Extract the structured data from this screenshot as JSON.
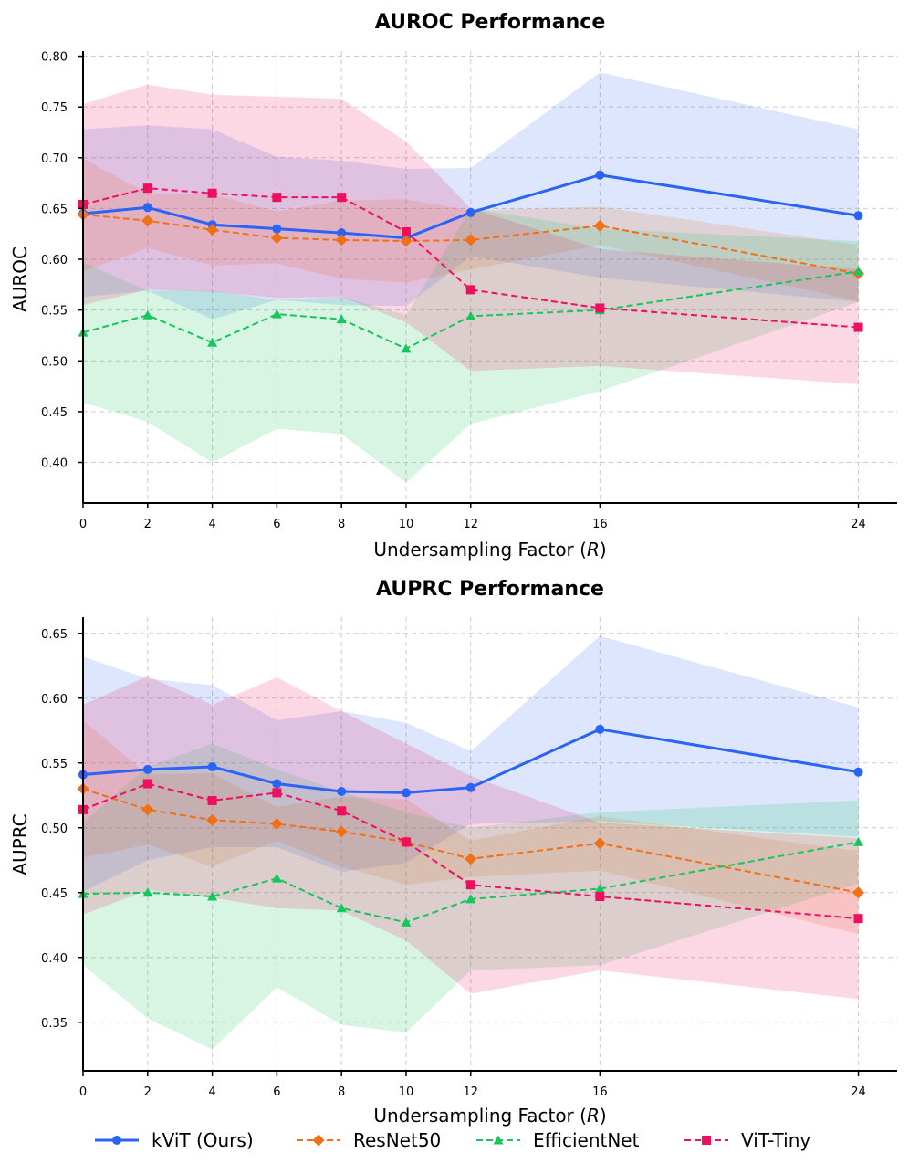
{
  "colors": {
    "kvit": "#2b63f5",
    "resnet": "#f07015",
    "efficientnet": "#17c65c",
    "vittiny": "#ee105f",
    "grid": "#cccccc",
    "axis": "#000000"
  },
  "legend": [
    {
      "name": "kViT (Ours)",
      "marker": "circle",
      "dashed": false,
      "colorKey": "kvit"
    },
    {
      "name": "ResNet50",
      "marker": "diamond",
      "dashed": true,
      "colorKey": "resnet"
    },
    {
      "name": "EfficientNet",
      "marker": "triangle",
      "dashed": true,
      "colorKey": "efficientnet"
    },
    {
      "name": "ViT-Tiny",
      "marker": "square",
      "dashed": true,
      "colorKey": "vittiny"
    }
  ],
  "chart_data": [
    {
      "type": "line",
      "title": "AUROC Performance",
      "xlabel_prefix": "Undersampling Factor (",
      "xlabel_var": "R",
      "xlabel_suffix": ")",
      "ylabel": "AUROC",
      "x": [
        0,
        2,
        4,
        6,
        8,
        10,
        12,
        16,
        24
      ],
      "xticks": [
        "0",
        "2",
        "4",
        "6",
        "8",
        "10",
        "12",
        "16",
        "24"
      ],
      "ylim": [
        0.36,
        0.805
      ],
      "yticks": [
        "0.40",
        "0.45",
        "0.50",
        "0.55",
        "0.60",
        "0.65",
        "0.70",
        "0.75",
        "0.80"
      ],
      "grid": true,
      "series": [
        {
          "name": "kViT (Ours)",
          "colorKey": "kvit",
          "marker": "circle",
          "dashed": false,
          "values": [
            0.645,
            0.651,
            0.634,
            0.63,
            0.626,
            0.621,
            0.646,
            0.683,
            0.643
          ],
          "lower": [
            0.563,
            0.569,
            0.541,
            0.56,
            0.555,
            0.554,
            0.603,
            0.582,
            0.558
          ],
          "upper": [
            0.728,
            0.732,
            0.728,
            0.701,
            0.697,
            0.689,
            0.69,
            0.784,
            0.728
          ]
        },
        {
          "name": "ResNet50",
          "colorKey": "resnet",
          "marker": "diamond",
          "dashed": true,
          "values": [
            0.644,
            0.638,
            0.629,
            0.621,
            0.619,
            0.618,
            0.619,
            0.633,
            0.586
          ],
          "lower": [
            0.588,
            0.611,
            0.594,
            0.596,
            0.581,
            0.577,
            0.59,
            0.614,
            0.559
          ],
          "upper": [
            0.699,
            0.665,
            0.664,
            0.647,
            0.658,
            0.659,
            0.648,
            0.652,
            0.614
          ]
        },
        {
          "name": "EfficientNet",
          "colorKey": "efficientnet",
          "marker": "triangle",
          "dashed": true,
          "values": [
            0.528,
            0.545,
            0.518,
            0.546,
            0.541,
            0.512,
            0.544,
            0.55,
            0.588
          ],
          "lower": [
            0.459,
            0.44,
            0.4,
            0.433,
            0.428,
            0.38,
            0.438,
            0.47,
            0.558
          ],
          "upper": [
            0.597,
            0.569,
            0.569,
            0.56,
            0.563,
            0.545,
            0.65,
            0.63,
            0.618
          ]
        },
        {
          "name": "ViT-Tiny",
          "colorKey": "vittiny",
          "marker": "square",
          "dashed": true,
          "values": [
            0.654,
            0.67,
            0.665,
            0.661,
            0.661,
            0.627,
            0.57,
            0.552,
            0.533
          ],
          "lower": [
            0.555,
            0.57,
            0.568,
            0.562,
            0.563,
            0.538,
            0.49,
            0.495,
            0.477
          ],
          "upper": [
            0.753,
            0.772,
            0.762,
            0.76,
            0.758,
            0.716,
            0.65,
            0.61,
            0.59
          ]
        }
      ]
    },
    {
      "type": "line",
      "title": "AUPRC Performance",
      "xlabel_prefix": "Undersampling Factor (",
      "xlabel_var": "R",
      "xlabel_suffix": ")",
      "ylabel": "AUPRC",
      "x": [
        0,
        2,
        4,
        6,
        8,
        10,
        12,
        16,
        24
      ],
      "xticks": [
        "0",
        "2",
        "4",
        "6",
        "8",
        "10",
        "12",
        "16",
        "24"
      ],
      "ylim": [
        0.3125,
        0.6625
      ],
      "yticks": [
        "0.35",
        "0.40",
        "0.45",
        "0.50",
        "0.55",
        "0.60",
        "0.65"
      ],
      "grid": true,
      "series": [
        {
          "name": "kViT (Ours)",
          "colorKey": "kvit",
          "marker": "circle",
          "dashed": false,
          "values": [
            0.541,
            0.545,
            0.547,
            0.534,
            0.528,
            0.527,
            0.531,
            0.576,
            0.543
          ],
          "lower": [
            0.451,
            0.475,
            0.485,
            0.485,
            0.466,
            0.473,
            0.503,
            0.505,
            0.493
          ],
          "upper": [
            0.632,
            0.615,
            0.61,
            0.583,
            0.59,
            0.581,
            0.559,
            0.648,
            0.593
          ]
        },
        {
          "name": "ResNet50",
          "colorKey": "resnet",
          "marker": "diamond",
          "dashed": true,
          "values": [
            0.53,
            0.514,
            0.506,
            0.503,
            0.497,
            0.489,
            0.476,
            0.488,
            0.45
          ],
          "lower": [
            0.477,
            0.487,
            0.47,
            0.49,
            0.47,
            0.456,
            0.462,
            0.467,
            0.418
          ],
          "upper": [
            0.583,
            0.541,
            0.542,
            0.516,
            0.524,
            0.522,
            0.49,
            0.509,
            0.482
          ]
        },
        {
          "name": "EfficientNet",
          "colorKey": "efficientnet",
          "marker": "triangle",
          "dashed": true,
          "values": [
            0.449,
            0.45,
            0.447,
            0.461,
            0.438,
            0.427,
            0.445,
            0.453,
            0.489
          ],
          "lower": [
            0.394,
            0.353,
            0.329,
            0.377,
            0.348,
            0.342,
            0.39,
            0.394,
            0.457
          ],
          "upper": [
            0.504,
            0.547,
            0.565,
            0.545,
            0.528,
            0.512,
            0.5,
            0.512,
            0.521
          ]
        },
        {
          "name": "ViT-Tiny",
          "colorKey": "vittiny",
          "marker": "square",
          "dashed": true,
          "values": [
            0.514,
            0.534,
            0.521,
            0.527,
            0.513,
            0.489,
            0.456,
            0.447,
            0.43
          ],
          "lower": [
            0.433,
            0.452,
            0.446,
            0.438,
            0.436,
            0.413,
            0.372,
            0.39,
            0.368
          ],
          "upper": [
            0.595,
            0.617,
            0.595,
            0.616,
            0.59,
            0.565,
            0.54,
            0.504,
            0.492
          ]
        }
      ]
    }
  ]
}
